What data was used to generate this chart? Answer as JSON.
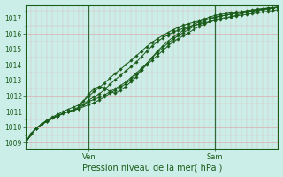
{
  "title": "Pression niveau de la mer( hPa )",
  "ylabel_ticks": [
    1009,
    1010,
    1011,
    1012,
    1013,
    1014,
    1015,
    1016,
    1017
  ],
  "ylim": [
    1008.6,
    1017.85
  ],
  "xlim": [
    0,
    48
  ],
  "ven_x": 12,
  "sam_x": 36,
  "bg_color": "#cceee8",
  "grid_color": "#d8b8b8",
  "line_color": "#1a5c1a",
  "marker_color": "#1a5c1a",
  "vline_color": "#336633",
  "series": [
    [
      0,
      1009.05,
      1,
      1009.6,
      2,
      1009.95,
      3,
      1010.2,
      4,
      1010.45,
      5,
      1010.65,
      6,
      1010.82,
      7,
      1011.0,
      8,
      1011.15,
      9,
      1011.28,
      10,
      1011.42,
      11,
      1011.7,
      12,
      1012.0,
      13,
      1012.3,
      14,
      1012.55,
      15,
      1012.85,
      16,
      1013.15,
      17,
      1013.45,
      18,
      1013.72,
      19,
      1014.0,
      20,
      1014.28,
      21,
      1014.58,
      22,
      1014.88,
      23,
      1015.18,
      24,
      1015.45,
      25,
      1015.68,
      26,
      1015.88,
      27,
      1016.08,
      28,
      1016.25,
      29,
      1016.42,
      30,
      1016.55,
      31,
      1016.65,
      32,
      1016.75,
      33,
      1016.82,
      34,
      1016.9,
      35,
      1016.97,
      36,
      1017.05,
      37,
      1017.12,
      38,
      1017.2,
      39,
      1017.28,
      40,
      1017.35,
      41,
      1017.42,
      42,
      1017.48,
      43,
      1017.53,
      44,
      1017.58,
      45,
      1017.62,
      46,
      1017.65,
      47,
      1017.68,
      48,
      1017.72
    ],
    [
      0,
      1009.05,
      1,
      1009.6,
      2,
      1009.95,
      3,
      1010.2,
      4,
      1010.45,
      5,
      1010.6,
      6,
      1010.75,
      7,
      1010.9,
      8,
      1011.0,
      9,
      1011.12,
      10,
      1011.28,
      11,
      1011.48,
      12,
      1011.75,
      13,
      1011.95,
      14,
      1012.15,
      15,
      1012.42,
      16,
      1012.75,
      17,
      1013.05,
      18,
      1013.32,
      19,
      1013.6,
      20,
      1013.88,
      21,
      1014.18,
      22,
      1014.52,
      23,
      1014.88,
      24,
      1015.2,
      25,
      1015.48,
      26,
      1015.72,
      27,
      1015.92,
      28,
      1016.1,
      29,
      1016.22,
      30,
      1016.35,
      31,
      1016.45,
      32,
      1016.55,
      33,
      1016.62,
      34,
      1016.7,
      35,
      1016.78,
      36,
      1016.85,
      37,
      1016.92,
      38,
      1017.0,
      39,
      1017.08,
      40,
      1017.18,
      41,
      1017.3,
      42,
      1017.38,
      43,
      1017.48,
      44,
      1017.55,
      45,
      1017.6,
      46,
      1017.65,
      47,
      1017.68,
      48,
      1017.72
    ],
    [
      0,
      1009.05,
      2,
      1009.95,
      4,
      1010.38,
      6,
      1010.72,
      8,
      1011.0,
      10,
      1011.22,
      12,
      1012.15,
      13,
      1012.48,
      14,
      1012.62,
      15,
      1012.52,
      16,
      1012.3,
      17,
      1012.18,
      18,
      1012.38,
      19,
      1012.62,
      20,
      1012.92,
      21,
      1013.22,
      22,
      1013.68,
      23,
      1014.08,
      24,
      1014.48,
      25,
      1014.88,
      26,
      1015.2,
      27,
      1015.52,
      28,
      1015.78,
      29,
      1016.0,
      30,
      1016.22,
      31,
      1016.42,
      32,
      1016.6,
      33,
      1016.78,
      34,
      1016.95,
      35,
      1017.08,
      36,
      1017.18,
      37,
      1017.25,
      38,
      1017.3,
      39,
      1017.35,
      40,
      1017.4,
      41,
      1017.42,
      42,
      1017.44,
      43,
      1017.48,
      44,
      1017.52,
      45,
      1017.56,
      46,
      1017.6,
      47,
      1017.65,
      48,
      1017.7
    ],
    [
      0,
      1009.05,
      2,
      1009.95,
      4,
      1010.38,
      6,
      1010.72,
      8,
      1011.0,
      10,
      1011.18,
      12,
      1011.65,
      13,
      1011.78,
      14,
      1011.92,
      15,
      1012.08,
      16,
      1012.28,
      17,
      1012.48,
      18,
      1012.68,
      19,
      1012.9,
      20,
      1013.18,
      21,
      1013.48,
      22,
      1013.78,
      23,
      1014.1,
      24,
      1014.45,
      25,
      1014.78,
      26,
      1015.08,
      27,
      1015.38,
      28,
      1015.65,
      29,
      1015.88,
      30,
      1016.08,
      31,
      1016.28,
      32,
      1016.48,
      33,
      1016.65,
      34,
      1016.82,
      35,
      1016.98,
      36,
      1017.08,
      37,
      1017.15,
      38,
      1017.2,
      39,
      1017.25,
      40,
      1017.3,
      41,
      1017.35,
      42,
      1017.4,
      43,
      1017.45,
      44,
      1017.5,
      45,
      1017.55,
      46,
      1017.6,
      47,
      1017.65,
      48,
      1017.7
    ],
    [
      0,
      1009.05,
      2,
      1009.95,
      4,
      1010.38,
      6,
      1010.72,
      8,
      1011.0,
      10,
      1011.18,
      12,
      1011.45,
      13,
      1011.58,
      14,
      1011.75,
      15,
      1011.95,
      16,
      1012.18,
      17,
      1012.38,
      18,
      1012.58,
      19,
      1012.78,
      20,
      1013.08,
      21,
      1013.38,
      22,
      1013.68,
      23,
      1014.0,
      24,
      1014.3,
      25,
      1014.6,
      26,
      1014.9,
      27,
      1015.2,
      28,
      1015.48,
      29,
      1015.68,
      30,
      1015.88,
      31,
      1016.08,
      32,
      1016.28,
      33,
      1016.48,
      34,
      1016.62,
      35,
      1016.78,
      36,
      1016.88,
      37,
      1016.98,
      38,
      1017.05,
      39,
      1017.1,
      40,
      1017.15,
      41,
      1017.2,
      42,
      1017.25,
      43,
      1017.3,
      44,
      1017.35,
      45,
      1017.4,
      46,
      1017.45,
      47,
      1017.5,
      48,
      1017.55
    ]
  ]
}
